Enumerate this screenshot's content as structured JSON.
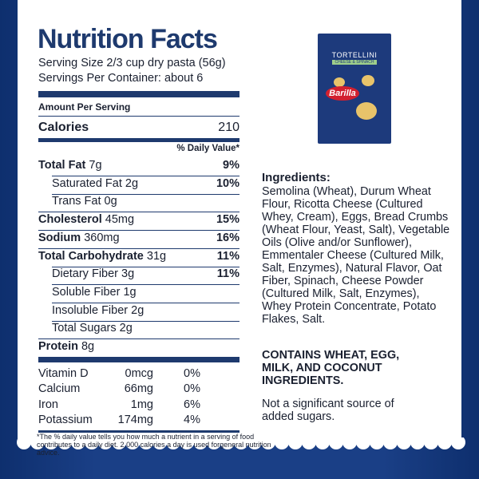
{
  "label": {
    "title": "Nutrition Facts",
    "serving_size": "Serving Size 2/3 cup dry pasta (56g)",
    "servings": "Servings Per Container: about 6",
    "amount_per_serving": "Amount Per Serving",
    "calories": {
      "label": "Calories",
      "value": "210"
    },
    "daily_value_header": "% Daily Value*",
    "nutrients": [
      {
        "name": "Total Fat",
        "amount": "7g",
        "dv": "9%",
        "bold": true,
        "indent": false
      },
      {
        "name": "Saturated Fat",
        "amount": "2g",
        "dv": "10%",
        "bold": false,
        "indent": true
      },
      {
        "name": "Trans Fat",
        "amount": "0g",
        "bold": false,
        "indent": true
      },
      {
        "name": "Cholesterol",
        "amount": "45mg",
        "dv": "15%",
        "bold": true,
        "indent": false
      },
      {
        "name": "Sodium",
        "amount": "360mg",
        "dv": "16%",
        "bold": true,
        "indent": false
      },
      {
        "name": "Total Carbohydrate",
        "amount": "31g",
        "dv": "11%",
        "bold": true,
        "indent": false
      },
      {
        "name": "Dietary Fiber",
        "amount": "3g",
        "dv": "11%",
        "bold": false,
        "indent": true
      },
      {
        "name": "Soluble Fiber",
        "amount": "1g",
        "bold": false,
        "indent": true
      },
      {
        "name": "Insoluble Fiber",
        "amount": "2g",
        "bold": false,
        "indent": true
      },
      {
        "name": "Total Sugars",
        "amount": "2g",
        "bold": false,
        "indent": true
      },
      {
        "name": "Protein",
        "amount": "8g",
        "bold": true,
        "indent": false
      }
    ],
    "vitamins": [
      {
        "name": "Vitamin D",
        "amount": "0mcg",
        "dv": "0%"
      },
      {
        "name": "Calcium",
        "amount": "66mg",
        "dv": "0%"
      },
      {
        "name": "Iron",
        "amount": "1mg",
        "dv": "6%"
      },
      {
        "name": "Potassium",
        "amount": "174mg",
        "dv": "4%"
      }
    ],
    "footnote": "*The % daily value tells you how much a nutrient in a serving of food contributes to a daily diet. 2,000 calories a day is used forgeneral nutrition advice."
  },
  "package": {
    "product": "TORTELLINI",
    "flavor": "CHEESE & SPINACH",
    "brand": "Barilla"
  },
  "ingredients": {
    "heading": "Ingredients:",
    "text": "Semolina (Wheat), Durum Wheat Flour, Ricotta Cheese (Cultured Whey, Cream), Eggs, Bread Crumbs (Wheat Flour, Yeast, Salt), Vegetable Oils (Olive and/or Sunflower), Emmentaler Cheese (Cultured Milk, Salt, Enzymes), Natural Flavor, Oat Fiber, Spinach, Cheese Powder (Cultured Milk, Salt, Enzymes), Whey Protein Concentrate, Potato Flakes, Salt.",
    "allergens": "CONTAINS WHEAT, EGG, MILK, AND COCONUT INGREDIENTS.",
    "note": "Not a significant source of added sugars."
  }
}
